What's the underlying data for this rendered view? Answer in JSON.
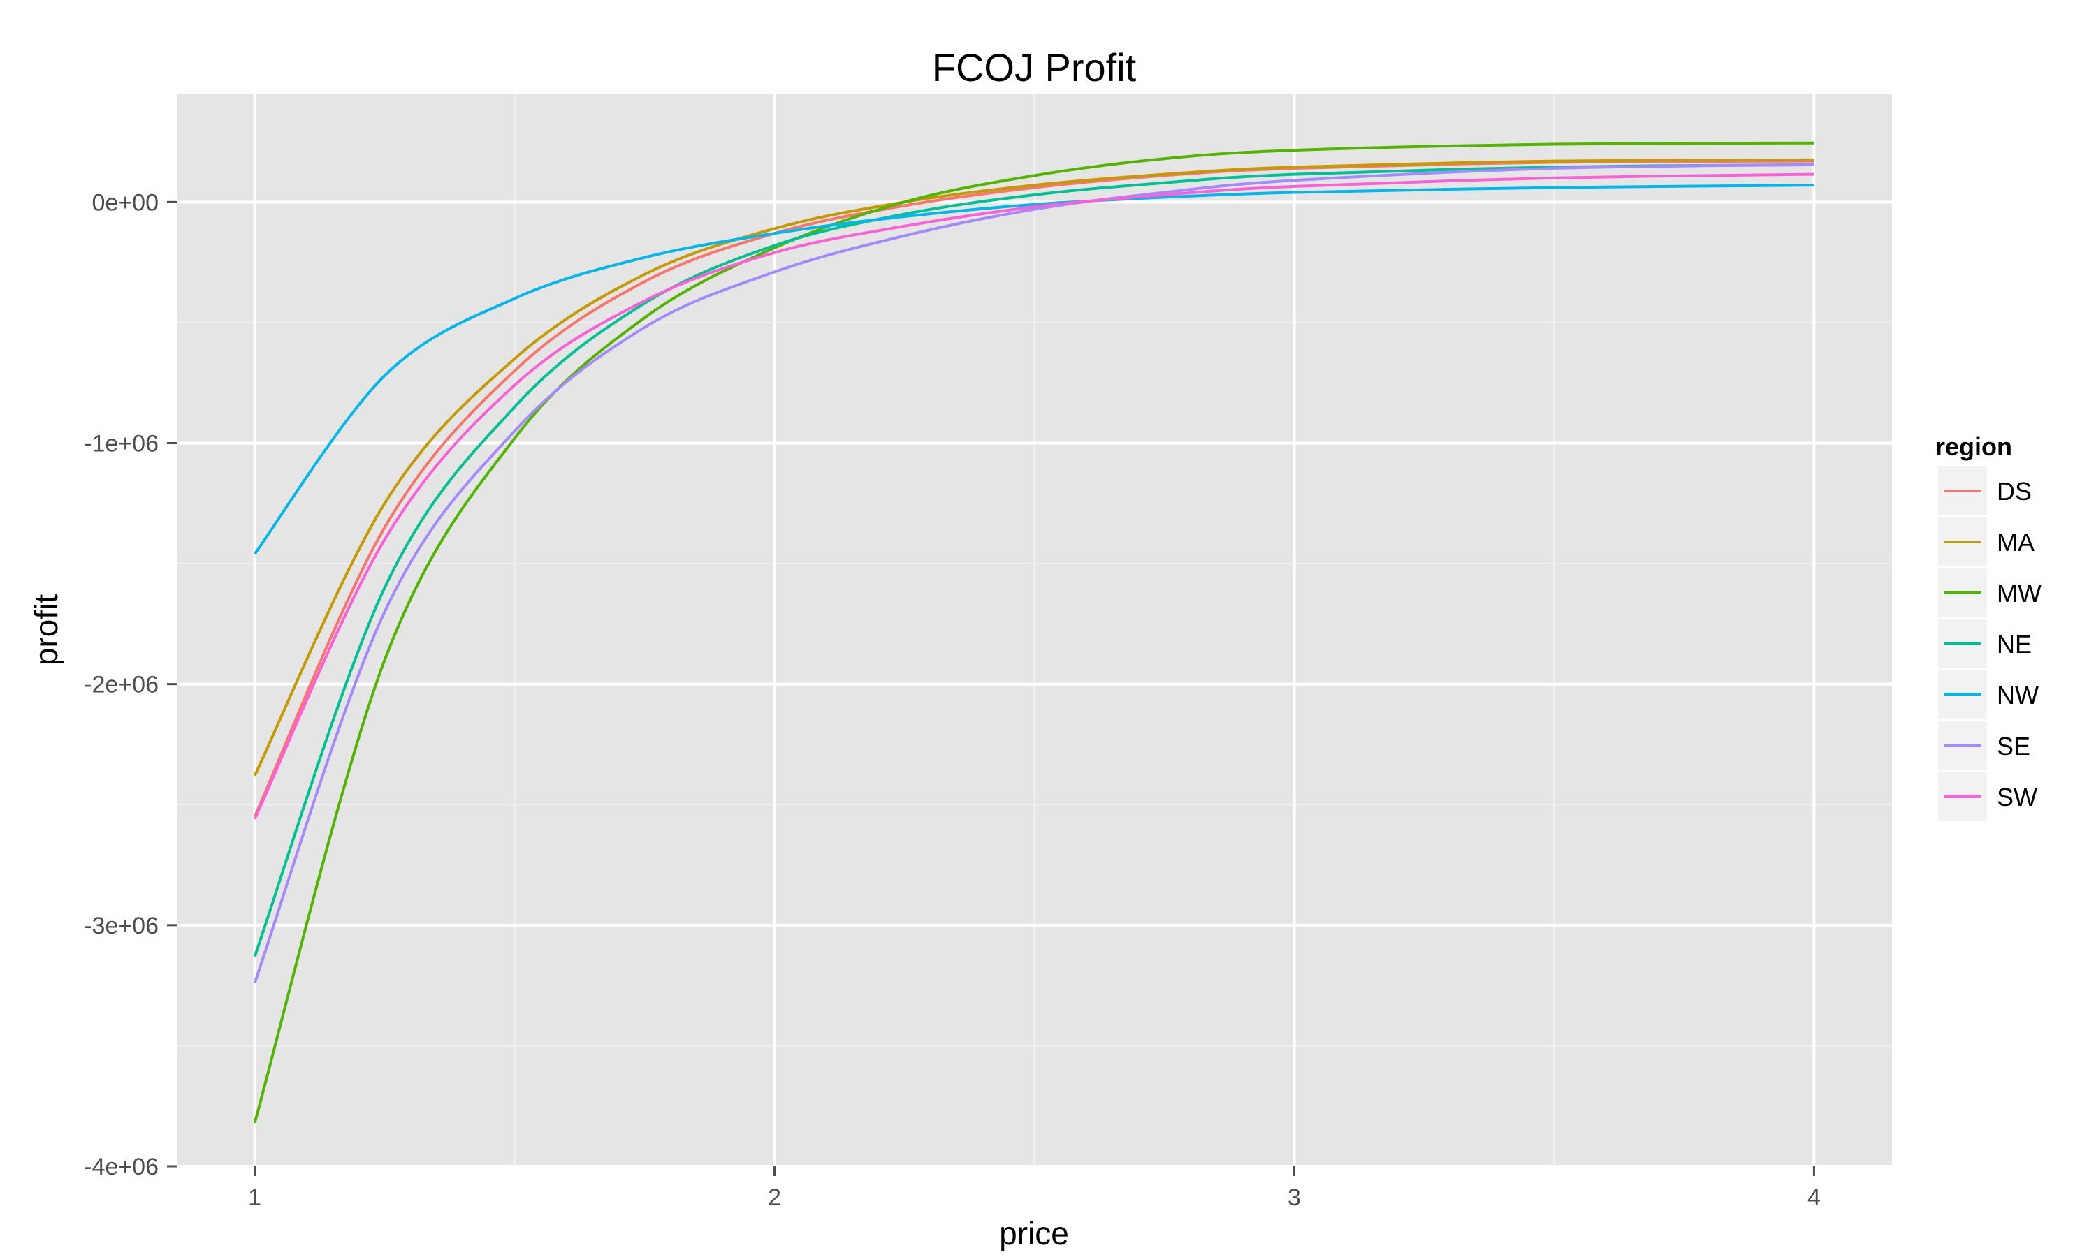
{
  "chart_data": {
    "type": "line",
    "title": "FCOJ Profit",
    "xlabel": "price",
    "ylabel": "profit",
    "xlim": [
      0.85,
      4.15
    ],
    "ylim": [
      -4000000,
      450000
    ],
    "x_ticks": [
      1,
      2,
      3,
      4
    ],
    "x_tick_labels": [
      "1",
      "2",
      "3",
      "4"
    ],
    "y_ticks": [
      -4000000,
      -3000000,
      -2000000,
      -1000000,
      0
    ],
    "y_tick_labels": [
      "-4e+06",
      "-3e+06",
      "-2e+06",
      "-1e+06",
      "0e+00"
    ],
    "grid": true,
    "panel_background": "#e5e5e5",
    "legend": {
      "title": "region",
      "position": "right"
    },
    "series": [
      {
        "name": "DS",
        "color": "#F8766D",
        "x": [
          1,
          1.25,
          1.5,
          1.75,
          2,
          2.25,
          2.5,
          2.75,
          3,
          3.5,
          4
        ],
        "y": [
          -2550000,
          -1350000,
          -700000,
          -330000,
          -130000,
          -15000,
          60000,
          110000,
          140000,
          165000,
          170000
        ]
      },
      {
        "name": "MA",
        "color": "#C49A00",
        "x": [
          1,
          1.25,
          1.5,
          1.75,
          2,
          2.25,
          2.5,
          2.75,
          3,
          3.5,
          4
        ],
        "y": [
          -2380000,
          -1250000,
          -650000,
          -300000,
          -110000,
          0,
          70000,
          115000,
          145000,
          170000,
          175000
        ]
      },
      {
        "name": "MW",
        "color": "#53B400",
        "x": [
          1,
          1.25,
          1.5,
          1.75,
          2,
          2.25,
          2.5,
          2.75,
          3,
          3.5,
          4
        ],
        "y": [
          -3820000,
          -1900000,
          -980000,
          -480000,
          -190000,
          0,
          110000,
          180000,
          215000,
          240000,
          245000
        ]
      },
      {
        "name": "NE",
        "color": "#00C094",
        "x": [
          1,
          1.25,
          1.5,
          1.75,
          2,
          2.25,
          2.5,
          2.75,
          3,
          3.5,
          4
        ],
        "y": [
          -3130000,
          -1600000,
          -850000,
          -420000,
          -180000,
          -50000,
          30000,
          80000,
          115000,
          145000,
          155000
        ]
      },
      {
        "name": "NW",
        "color": "#00B6EB",
        "x": [
          1,
          1.25,
          1.5,
          1.75,
          2,
          2.25,
          2.5,
          2.75,
          3,
          3.5,
          4
        ],
        "y": [
          -1460000,
          -720000,
          -400000,
          -230000,
          -130000,
          -60000,
          -10000,
          20000,
          40000,
          60000,
          70000
        ]
      },
      {
        "name": "SE",
        "color": "#A58AFF",
        "x": [
          1,
          1.25,
          1.5,
          1.75,
          2,
          2.25,
          2.5,
          2.75,
          3,
          3.5,
          4
        ],
        "y": [
          -3240000,
          -1700000,
          -950000,
          -520000,
          -290000,
          -140000,
          -30000,
          40000,
          90000,
          140000,
          155000
        ]
      },
      {
        "name": "SW",
        "color": "#FB61D7",
        "x": [
          1,
          1.25,
          1.5,
          1.75,
          2,
          2.25,
          2.5,
          2.75,
          3,
          3.5,
          4
        ],
        "y": [
          -2560000,
          -1400000,
          -760000,
          -410000,
          -210000,
          -100000,
          -20000,
          30000,
          65000,
          100000,
          115000
        ]
      }
    ]
  }
}
